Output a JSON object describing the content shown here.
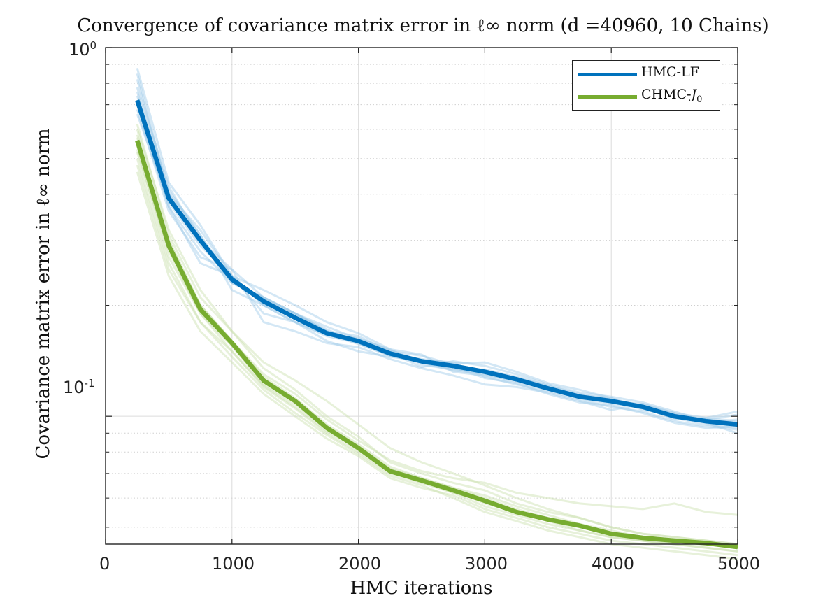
{
  "chart_data": {
    "type": "line",
    "title": "Convergence of covariance matrix error in ℓ∞ norm (d =40960, 10 Chains)",
    "xlabel": "HMC iterations",
    "ylabel": "Covariance matrix error in ℓ∞ norm",
    "x_ticks": [
      "0",
      "1000",
      "2000",
      "3000",
      "4000",
      "5000"
    ],
    "y_ticks": [
      {
        "base": "10",
        "exp": "0"
      },
      {
        "base": "10",
        "exp": "-1"
      }
    ],
    "xlim": [
      0,
      5000
    ],
    "ylim": [
      0.045,
      1.0
    ],
    "yscale": "log",
    "grid": true,
    "legend_position": "top-right",
    "x": [
      250,
      500,
      750,
      1000,
      1250,
      1500,
      1750,
      2000,
      2250,
      2500,
      2750,
      3000,
      3250,
      3500,
      3750,
      4000,
      4250,
      4500,
      4750,
      5000
    ],
    "series": [
      {
        "name": "HMC-LF",
        "color": "#0072BD",
        "faint_color": "#9ecae8",
        "values": [
          0.72,
          0.39,
          0.3,
          0.235,
          0.205,
          0.185,
          0.168,
          0.16,
          0.148,
          0.141,
          0.137,
          0.132,
          0.126,
          0.119,
          0.113,
          0.11,
          0.106,
          0.1,
          0.097,
          0.095
        ],
        "chains": [
          [
            0.78,
            0.42,
            0.3,
            0.25,
            0.21,
            0.19,
            0.17,
            0.165,
            0.15,
            0.146,
            0.138,
            0.131,
            0.127,
            0.12,
            0.112,
            0.108,
            0.106,
            0.099,
            0.095,
            0.093
          ],
          [
            0.85,
            0.4,
            0.32,
            0.24,
            0.2,
            0.18,
            0.165,
            0.158,
            0.146,
            0.14,
            0.135,
            0.13,
            0.124,
            0.118,
            0.114,
            0.112,
            0.104,
            0.101,
            0.098,
            0.096
          ],
          [
            0.7,
            0.37,
            0.28,
            0.23,
            0.21,
            0.19,
            0.175,
            0.162,
            0.152,
            0.138,
            0.134,
            0.134,
            0.128,
            0.121,
            0.115,
            0.111,
            0.107,
            0.102,
            0.099,
            0.097
          ],
          [
            0.66,
            0.38,
            0.29,
            0.24,
            0.19,
            0.18,
            0.16,
            0.15,
            0.145,
            0.142,
            0.14,
            0.128,
            0.122,
            0.117,
            0.111,
            0.106,
            0.103,
            0.097,
            0.094,
            0.092
          ],
          [
            0.74,
            0.41,
            0.31,
            0.22,
            0.2,
            0.19,
            0.17,
            0.161,
            0.149,
            0.136,
            0.141,
            0.137,
            0.13,
            0.122,
            0.116,
            0.113,
            0.109,
            0.103,
            0.097,
            0.096
          ],
          [
            0.88,
            0.43,
            0.33,
            0.24,
            0.22,
            0.2,
            0.18,
            0.168,
            0.152,
            0.147,
            0.132,
            0.129,
            0.125,
            0.119,
            0.113,
            0.109,
            0.105,
            0.1,
            0.098,
            0.101
          ],
          [
            0.68,
            0.36,
            0.27,
            0.25,
            0.18,
            0.17,
            0.158,
            0.154,
            0.143,
            0.135,
            0.129,
            0.122,
            0.12,
            0.116,
            0.11,
            0.104,
            0.108,
            0.102,
            0.096,
            0.09
          ],
          [
            0.76,
            0.39,
            0.3,
            0.23,
            0.21,
            0.19,
            0.172,
            0.158,
            0.148,
            0.143,
            0.139,
            0.14,
            0.132,
            0.123,
            0.118,
            0.112,
            0.106,
            0.098,
            0.099,
            0.103
          ],
          [
            0.72,
            0.37,
            0.26,
            0.24,
            0.2,
            0.18,
            0.166,
            0.163,
            0.151,
            0.141,
            0.136,
            0.127,
            0.123,
            0.115,
            0.109,
            0.107,
            0.102,
            0.096,
            0.093,
            0.094
          ],
          [
            0.82,
            0.4,
            0.31,
            0.23,
            0.21,
            0.19,
            0.168,
            0.157,
            0.146,
            0.14,
            0.133,
            0.131,
            0.127,
            0.121,
            0.114,
            0.11,
            0.108,
            0.101,
            0.096,
            0.098
          ]
        ]
      },
      {
        "name": "CHMC-J0",
        "color": "#77AC30",
        "faint_color": "#c9dfae",
        "values": [
          0.56,
          0.29,
          0.195,
          0.158,
          0.125,
          0.11,
          0.093,
          0.082,
          0.071,
          0.067,
          0.063,
          0.059,
          0.055,
          0.0525,
          0.0505,
          0.048,
          0.0468,
          0.046,
          0.0453,
          0.0442
        ],
        "chains": [
          [
            0.5,
            0.26,
            0.18,
            0.15,
            0.12,
            0.105,
            0.09,
            0.08,
            0.07,
            0.066,
            0.062,
            0.057,
            0.054,
            0.051,
            0.049,
            0.047,
            0.046,
            0.045,
            0.044,
            0.043
          ],
          [
            0.58,
            0.3,
            0.2,
            0.16,
            0.128,
            0.112,
            0.095,
            0.084,
            0.073,
            0.068,
            0.064,
            0.06,
            0.056,
            0.053,
            0.051,
            0.049,
            0.047,
            0.046,
            0.046,
            0.045
          ],
          [
            0.46,
            0.24,
            0.17,
            0.14,
            0.115,
            0.1,
            0.087,
            0.078,
            0.068,
            0.064,
            0.061,
            0.056,
            0.053,
            0.05,
            0.048,
            0.046,
            0.045,
            0.044,
            0.043,
            0.042
          ],
          [
            0.62,
            0.31,
            0.21,
            0.17,
            0.135,
            0.118,
            0.1,
            0.088,
            0.075,
            0.07,
            0.066,
            0.063,
            0.058,
            0.055,
            0.053,
            0.05,
            0.048,
            0.047,
            0.046,
            0.045
          ],
          [
            0.52,
            0.28,
            0.19,
            0.155,
            0.122,
            0.108,
            0.092,
            0.081,
            0.071,
            0.066,
            0.063,
            0.058,
            0.055,
            0.052,
            0.05,
            0.048,
            0.046,
            0.045,
            0.045,
            0.044
          ],
          [
            0.55,
            0.29,
            0.2,
            0.16,
            0.13,
            0.115,
            0.098,
            0.086,
            0.076,
            0.071,
            0.068,
            0.066,
            0.062,
            0.06,
            0.058,
            0.057,
            0.056,
            0.058,
            0.055,
            0.054
          ],
          [
            0.48,
            0.25,
            0.18,
            0.145,
            0.118,
            0.102,
            0.089,
            0.079,
            0.069,
            0.065,
            0.06,
            0.055,
            0.052,
            0.049,
            0.047,
            0.045,
            0.044,
            0.043,
            0.042,
            0.041
          ],
          [
            0.6,
            0.32,
            0.22,
            0.17,
            0.14,
            0.125,
            0.11,
            0.095,
            0.082,
            0.075,
            0.07,
            0.065,
            0.06,
            0.056,
            0.053,
            0.05,
            0.048,
            0.047,
            0.046,
            0.044
          ],
          [
            0.53,
            0.27,
            0.19,
            0.15,
            0.121,
            0.106,
            0.091,
            0.082,
            0.072,
            0.067,
            0.062,
            0.059,
            0.055,
            0.052,
            0.049,
            0.047,
            0.046,
            0.045,
            0.044,
            0.043
          ],
          [
            0.57,
            0.3,
            0.2,
            0.16,
            0.126,
            0.11,
            0.094,
            0.083,
            0.072,
            0.068,
            0.064,
            0.061,
            0.057,
            0.054,
            0.051,
            0.048,
            0.047,
            0.046,
            0.045,
            0.045
          ]
        ]
      }
    ]
  },
  "legend": {
    "hmc_label": "HMC-LF",
    "chmc_label_base": "CHMC-",
    "chmc_label_sym": "J",
    "chmc_label_sub": "0"
  }
}
